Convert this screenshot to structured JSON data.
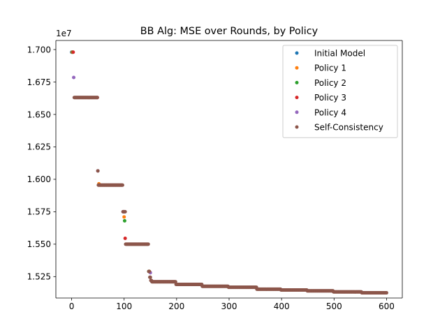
{
  "chart_data": {
    "type": "scatter",
    "title": "BB Alg: MSE over Rounds, by Policy",
    "xlabel": "",
    "ylabel": "",
    "y_offset_label": "1e7",
    "xlim": [
      -30,
      630
    ],
    "ylim": [
      15085000,
      17070000
    ],
    "x_ticks": [
      0,
      100,
      200,
      300,
      400,
      500,
      600
    ],
    "x_tick_labels": [
      "0",
      "100",
      "200",
      "300",
      "400",
      "500",
      "600"
    ],
    "y_ticks": [
      15250000,
      15500000,
      15750000,
      16000000,
      16250000,
      16500000,
      16750000,
      17000000
    ],
    "y_tick_labels": [
      "1.525",
      "1.550",
      "1.575",
      "1.600",
      "1.625",
      "1.650",
      "1.675",
      "1.700"
    ],
    "grid": false,
    "legend_position": "top-right",
    "series": [
      {
        "name": "Initial Model",
        "color": "#1f77b4",
        "points": [
          [
            0,
            16980000
          ]
        ]
      },
      {
        "name": "Policy 1",
        "color": "#ff7f0e",
        "points": [
          [
            1,
            16980000
          ],
          [
            52,
            15965000
          ],
          [
            100,
            15710000
          ],
          [
            148,
            15290000
          ]
        ]
      },
      {
        "name": "Policy 2",
        "color": "#2ca02c",
        "points": [
          [
            2,
            16980000
          ],
          [
            101,
            15680000
          ],
          [
            147,
            15290000
          ]
        ]
      },
      {
        "name": "Policy 3",
        "color": "#d62728",
        "points": [
          [
            3,
            16980000
          ],
          [
            49,
            16630000
          ],
          [
            102,
            15545000
          ],
          [
            149,
            15285000
          ]
        ]
      },
      {
        "name": "Policy 4",
        "color": "#9467bd",
        "points": [
          [
            4,
            16785000
          ],
          [
            50,
            16065000
          ],
          [
            98,
            15750000
          ],
          [
            150,
            15280000
          ]
        ]
      },
      {
        "name": "Self-Consistency",
        "color": "#8c564b",
        "segments": [
          [
            5,
            49,
            16630000
          ],
          [
            50,
            50,
            16065000
          ],
          [
            51,
            97,
            15955000
          ],
          [
            98,
            102,
            15750000
          ],
          [
            103,
            146,
            15500000
          ],
          [
            147,
            148,
            15290000
          ],
          [
            149,
            150,
            15245000
          ],
          [
            151,
            152,
            15220000
          ],
          [
            153,
            198,
            15210000
          ],
          [
            199,
            248,
            15190000
          ],
          [
            249,
            298,
            15175000
          ],
          [
            299,
            352,
            15168000
          ],
          [
            353,
            398,
            15153000
          ],
          [
            399,
            448,
            15147000
          ],
          [
            449,
            498,
            15140000
          ],
          [
            499,
            552,
            15132000
          ],
          [
            553,
            600,
            15125000
          ]
        ]
      }
    ]
  }
}
